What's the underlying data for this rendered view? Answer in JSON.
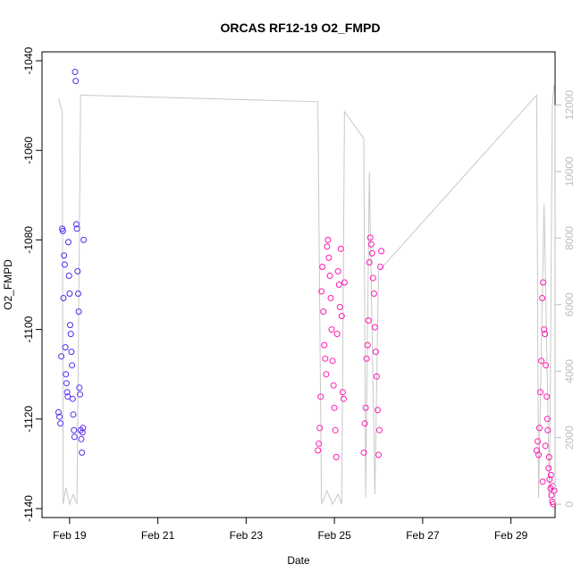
{
  "chart_data": {
    "type": "scatter",
    "title": "ORCAS RF12-19 O2_FMPD",
    "xlabel": "Date",
    "ylabel": "O2_FMPD",
    "x_ticks": [
      "Feb 19",
      "Feb 21",
      "Feb 23",
      "Feb 25",
      "Feb 27",
      "Feb 29"
    ],
    "xlim": [
      "Feb 18 09:00",
      "Mar 1 00:00"
    ],
    "ylim": [
      -1142,
      -1038
    ],
    "y_ticks": [
      -1040,
      -1060,
      -1080,
      -1100,
      -1120,
      -1140
    ],
    "y2lim": [
      -400,
      13600
    ],
    "y2_ticks": [
      0,
      2000,
      4000,
      6000,
      8000,
      10000,
      12000
    ],
    "grid": false,
    "colors": {
      "point_early": "#4b2cf2",
      "point_late": "#ff1ab3",
      "line": "#c8c8c8",
      "right_axis": "#bdbdbd"
    },
    "series": [
      {
        "points": [
          [
            "Feb 18 18:00",
            -1118.5
          ],
          [
            "Feb 18 18:30",
            -1119.5
          ],
          [
            "Feb 18 19:00",
            -1121.0
          ],
          [
            "Feb 18 19:30",
            -1106.0
          ],
          [
            "Feb 18 20:00",
            -1077.5
          ],
          [
            "Feb 18 20:20",
            -1078.0
          ],
          [
            "Feb 18 20:40",
            -1093.0
          ],
          [
            "Feb 18 21:00",
            -1083.5
          ],
          [
            "Feb 18 21:20",
            -1085.5
          ],
          [
            "Feb 18 21:40",
            -1104.0
          ],
          [
            "Feb 18 22:00",
            -1110.0
          ],
          [
            "Feb 18 22:20",
            -1112.0
          ],
          [
            "Feb 18 22:40",
            -1114.0
          ],
          [
            "Feb 18 23:00",
            -1115.0
          ],
          [
            "Feb 18 23:20",
            -1080.5
          ],
          [
            "Feb 18 23:40",
            -1088.0
          ],
          [
            "Feb 19 00:00",
            -1092.0
          ],
          [
            "Feb 19 00:20",
            -1099.0
          ],
          [
            "Feb 19 00:40",
            -1101.0
          ],
          [
            "Feb 19 01:00",
            -1105.0
          ],
          [
            "Feb 19 01:20",
            -1108.0
          ],
          [
            "Feb 19 01:40",
            -1115.5
          ],
          [
            "Feb 19 02:00",
            -1119.0
          ],
          [
            "Feb 19 02:20",
            -1122.5
          ],
          [
            "Feb 19 02:40",
            -1124.0
          ],
          [
            "Feb 19 03:00",
            -1042.5
          ],
          [
            "Feb 19 03:20",
            -1044.5
          ],
          [
            "Feb 19 03:40",
            -1076.5
          ],
          [
            "Feb 19 04:00",
            -1077.5
          ],
          [
            "Feb 19 04:20",
            -1087.0
          ],
          [
            "Feb 19 04:40",
            -1092.0
          ],
          [
            "Feb 19 05:00",
            -1096.0
          ],
          [
            "Feb 19 05:20",
            -1113.0
          ],
          [
            "Feb 19 05:40",
            -1114.5
          ],
          [
            "Feb 19 06:00",
            -1122.5
          ],
          [
            "Feb 19 06:20",
            -1124.5
          ],
          [
            "Feb 19 06:40",
            -1127.5
          ],
          [
            "Feb 19 07:00",
            -1123.0
          ],
          [
            "Feb 19 07:20",
            -1122.0
          ],
          [
            "Feb 19 07:40",
            -1080.0
          ]
        ]
      },
      {
        "points": [
          [
            "Feb 24 15:00",
            -1127.0
          ],
          [
            "Feb 24 15:30",
            -1125.5
          ],
          [
            "Feb 24 16:00",
            -1122.0
          ],
          [
            "Feb 24 16:30",
            -1115.0
          ],
          [
            "Feb 24 17:00",
            -1091.5
          ],
          [
            "Feb 24 17:30",
            -1086.0
          ],
          [
            "Feb 24 18:00",
            -1096.0
          ],
          [
            "Feb 24 18:30",
            -1103.5
          ],
          [
            "Feb 24 19:00",
            -1106.5
          ],
          [
            "Feb 24 19:30",
            -1110.0
          ],
          [
            "Feb 24 20:00",
            -1081.5
          ],
          [
            "Feb 24 20:30",
            -1080.0
          ],
          [
            "Feb 24 21:00",
            -1084.0
          ],
          [
            "Feb 24 21:30",
            -1088.0
          ],
          [
            "Feb 24 22:00",
            -1093.0
          ],
          [
            "Feb 24 22:30",
            -1100.0
          ],
          [
            "Feb 24 23:00",
            -1107.0
          ],
          [
            "Feb 24 23:30",
            -1112.5
          ],
          [
            "Feb 25 00:00",
            -1117.5
          ],
          [
            "Feb 25 00:30",
            -1122.5
          ],
          [
            "Feb 25 01:00",
            -1128.5
          ],
          [
            "Feb 25 01:30",
            -1101.0
          ],
          [
            "Feb 25 02:00",
            -1087.0
          ],
          [
            "Feb 25 02:30",
            -1090.0
          ],
          [
            "Feb 25 03:00",
            -1095.0
          ],
          [
            "Feb 25 03:30",
            -1082.0
          ],
          [
            "Feb 25 04:00",
            -1097.0
          ],
          [
            "Feb 25 04:30",
            -1114.0
          ],
          [
            "Feb 25 05:00",
            -1115.5
          ],
          [
            "Feb 25 05:30",
            -1089.5
          ],
          [
            "Feb 25 16:00",
            -1127.5
          ],
          [
            "Feb 25 16:30",
            -1121.0
          ],
          [
            "Feb 25 17:00",
            -1117.5
          ],
          [
            "Feb 25 17:30",
            -1106.5
          ],
          [
            "Feb 25 18:00",
            -1103.5
          ],
          [
            "Feb 25 18:30",
            -1098.0
          ],
          [
            "Feb 25 19:00",
            -1085.0
          ],
          [
            "Feb 25 19:30",
            -1079.5
          ],
          [
            "Feb 25 20:00",
            -1081.0
          ],
          [
            "Feb 25 20:30",
            -1083.0
          ],
          [
            "Feb 25 21:00",
            -1088.5
          ],
          [
            "Feb 25 21:30",
            -1092.0
          ],
          [
            "Feb 25 22:00",
            -1099.5
          ],
          [
            "Feb 25 22:30",
            -1105.0
          ],
          [
            "Feb 25 23:00",
            -1110.5
          ],
          [
            "Feb 25 23:30",
            -1118.0
          ],
          [
            "Feb 26 00:00",
            -1128.0
          ],
          [
            "Feb 26 00:30",
            -1122.5
          ],
          [
            "Feb 26 01:00",
            -1086.0
          ],
          [
            "Feb 26 01:30",
            -1082.5
          ]
        ]
      },
      {
        "points": [
          [
            "Feb 29 14:00",
            -1127.0
          ],
          [
            "Feb 29 14:30",
            -1125.0
          ],
          [
            "Feb 29 15:00",
            -1128.0
          ],
          [
            "Feb 29 15:30",
            -1122.0
          ],
          [
            "Feb 29 16:00",
            -1114.0
          ],
          [
            "Feb 29 16:30",
            -1107.0
          ],
          [
            "Feb 29 17:00",
            -1093.0
          ],
          [
            "Feb 29 17:30",
            -1089.5
          ],
          [
            "Feb 29 18:00",
            -1100.0
          ],
          [
            "Feb 29 18:30",
            -1101.0
          ],
          [
            "Feb 29 19:00",
            -1108.0
          ],
          [
            "Feb 29 19:30",
            -1115.0
          ],
          [
            "Feb 29 20:00",
            -1122.5
          ],
          [
            "Feb 29 20:30",
            -1131.0
          ],
          [
            "Feb 29 21:00",
            -1133.5
          ],
          [
            "Feb 29 21:30",
            -1135.5
          ],
          [
            "Feb 29 22:00",
            -1137.0
          ],
          [
            "Feb 29 22:30",
            -1138.5
          ],
          [
            "Feb 29 23:00",
            -1139.0
          ],
          [
            "Feb 29 23:30",
            -1136.0
          ],
          [
            "Feb 29 17:15",
            -1134.0
          ],
          [
            "Feb 29 18:45",
            -1126.0
          ],
          [
            "Feb 29 19:45",
            -1120.0
          ],
          [
            "Feb 29 20:45",
            -1128.5
          ],
          [
            "Feb 29 21:45",
            -1132.5
          ],
          [
            "Feb 29 22:45",
            -1135.0
          ]
        ]
      }
    ],
    "altitude_line": [
      [
        "Feb 18 18:00",
        12200
      ],
      [
        "Feb 18 20:00",
        11800
      ],
      [
        "Feb 18 20:30",
        0
      ],
      [
        "Feb 18 22:00",
        500
      ],
      [
        "Feb 19 00:00",
        0
      ],
      [
        "Feb 19 02:00",
        300
      ],
      [
        "Feb 19 04:00",
        0
      ],
      [
        "Feb 19 06:00",
        12300
      ],
      [
        "Feb 24 15:00",
        12100
      ],
      [
        "Feb 24 17:00",
        0
      ],
      [
        "Feb 24 20:00",
        400
      ],
      [
        "Feb 24 23:00",
        0
      ],
      [
        "Feb 25 02:00",
        300
      ],
      [
        "Feb 25 04:00",
        0
      ],
      [
        "Feb 25 05:30",
        11800
      ],
      [
        "Feb 25 16:00",
        11000
      ],
      [
        "Feb 25 17:00",
        200
      ],
      [
        "Feb 25 19:00",
        10000
      ],
      [
        "Feb 25 22:00",
        300
      ],
      [
        "Feb 26 00:00",
        7000
      ],
      [
        "Feb 29 14:00",
        12300
      ],
      [
        "Feb 29 15:00",
        200
      ],
      [
        "Feb 29 18:00",
        9000
      ],
      [
        "Feb 29 21:00",
        100
      ],
      [
        "Feb 29 22:30",
        12000
      ],
      [
        "Feb 29 23:30",
        12600
      ]
    ]
  }
}
